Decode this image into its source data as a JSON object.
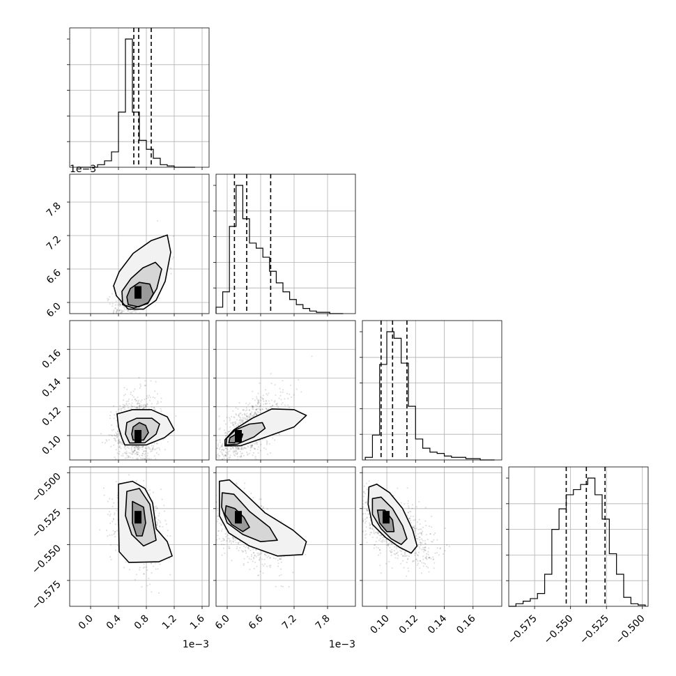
{
  "chart_data": {
    "type": "scatter",
    "subtype": "corner-plot",
    "grid": true,
    "colors": {
      "points": "#000000",
      "frame": "#000000",
      "grid": "#b0b0b0",
      "background": "#ffffff"
    },
    "parameters": [
      {
        "range": [
          -0.0003,
          0.0017
        ],
        "ticks": [
          0.0,
          0.0004,
          0.0008,
          0.0012,
          0.0016
        ],
        "tick_labels": [
          "0.0",
          "0.4",
          "0.8",
          "1.2",
          "1.6"
        ],
        "offset_label": "1e−3",
        "quantiles": [
          0.00062,
          0.00069,
          0.00087
        ]
      },
      {
        "range": [
          0.0058,
          0.0083
        ],
        "ticks": [
          0.006,
          0.0066,
          0.0072,
          0.0078
        ],
        "tick_labels": [
          "6.0",
          "6.6",
          "7.2",
          "7.8"
        ],
        "offset_label": "1e−3",
        "quantiles": [
          0.00613,
          0.00635,
          0.00678
        ]
      },
      {
        "range": [
          0.083,
          0.18
        ],
        "ticks": [
          0.1,
          0.12,
          0.14,
          0.16
        ],
        "tick_labels": [
          "0.10",
          "0.12",
          "0.14",
          "0.16"
        ],
        "offset_label": "",
        "quantiles": [
          0.096,
          0.104,
          0.114
        ]
      },
      {
        "range": [
          -0.593,
          -0.496
        ],
        "ticks": [
          -0.575,
          -0.55,
          -0.525,
          -0.5
        ],
        "tick_labels": [
          "−0.575",
          "−0.550",
          "−0.525",
          "−0.500"
        ],
        "offset_label": "",
        "quantiles": [
          -0.553,
          -0.539,
          -0.526
        ]
      }
    ],
    "histograms": [
      {
        "parameter": 0,
        "bins": [
          -0.0002,
          -0.0001,
          0.0,
          0.0001,
          0.0002,
          0.0003,
          0.0004,
          0.0005,
          0.0006,
          0.0007,
          0.0008,
          0.0009,
          0.001,
          0.0011,
          0.0012,
          0.0013,
          0.0014,
          0.0015
        ],
        "counts": [
          0,
          0,
          0,
          0.02,
          0.05,
          0.12,
          0.43,
          1.0,
          0.43,
          0.21,
          0.14,
          0.07,
          0.02,
          0.01,
          0,
          0,
          0
        ]
      },
      {
        "parameter": 1,
        "bins": [
          0.0058,
          0.00592,
          0.00604,
          0.00616,
          0.00628,
          0.0064,
          0.00652,
          0.00664,
          0.00676,
          0.00688,
          0.007,
          0.00712,
          0.00724,
          0.00736,
          0.00748,
          0.0076,
          0.00772,
          0.00784,
          0.00796,
          0.00808
        ],
        "counts": [
          0.05,
          0.17,
          0.68,
          1.0,
          0.74,
          0.55,
          0.51,
          0.44,
          0.33,
          0.24,
          0.17,
          0.11,
          0.07,
          0.04,
          0.02,
          0.01,
          0.01,
          0,
          0
        ]
      },
      {
        "parameter": 2,
        "bins": [
          0.085,
          0.09,
          0.095,
          0.1,
          0.105,
          0.11,
          0.115,
          0.12,
          0.125,
          0.13,
          0.135,
          0.14,
          0.145,
          0.15,
          0.155,
          0.16,
          0.165,
          0.17,
          0.175
        ],
        "counts": [
          0.02,
          0.19,
          0.73,
          0.98,
          0.93,
          0.74,
          0.41,
          0.16,
          0.09,
          0.06,
          0.05,
          0.03,
          0.02,
          0.02,
          0.01,
          0.01,
          0,
          0
        ]
      },
      {
        "parameter": 3,
        "bins": [
          -0.593,
          -0.588,
          -0.583,
          -0.578,
          -0.573,
          -0.568,
          -0.563,
          -0.558,
          -0.553,
          -0.548,
          -0.543,
          -0.538,
          -0.533,
          -0.528,
          -0.523,
          -0.518,
          -0.513,
          -0.508,
          -0.503,
          -0.498
        ],
        "counts": [
          0,
          0.02,
          0.04,
          0.06,
          0.1,
          0.25,
          0.6,
          0.76,
          0.87,
          0.91,
          0.95,
          1.0,
          0.87,
          0.68,
          0.41,
          0.25,
          0.07,
          0.02,
          0.01
        ]
      }
    ],
    "pairs": [
      {
        "x": 0,
        "y": 1,
        "center": [
          0.00068,
          0.00627
        ],
        "sigma": [
          0.00017,
          0.00032
        ],
        "rho": 0.6,
        "peak": [
          0.00068,
          0.00618
        ],
        "contours": [
          [
            [
              0.00054,
              0.00596
            ],
            [
              0.00069,
              0.00592
            ],
            [
              0.00083,
              0.006
            ],
            [
              0.0009,
              0.00616
            ],
            [
              0.00085,
              0.00633
            ],
            [
              0.0007,
              0.00636
            ],
            [
              0.00057,
              0.00625
            ],
            [
              0.00052,
              0.0061
            ]
          ],
          [
            [
              0.00046,
              0.00596
            ],
            [
              0.00062,
              0.0059
            ],
            [
              0.00082,
              0.00598
            ],
            [
              0.00095,
              0.00625
            ],
            [
              0.00102,
              0.0066
            ],
            [
              0.00093,
              0.00672
            ],
            [
              0.00075,
              0.00662
            ],
            [
              0.00058,
              0.00643
            ],
            [
              0.00045,
              0.0062
            ]
          ],
          [
            [
              0.00037,
              0.00612
            ],
            [
              0.00054,
              0.00588
            ],
            [
              0.00076,
              0.00588
            ],
            [
              0.00094,
              0.00604
            ],
            [
              0.00107,
              0.00638
            ],
            [
              0.00115,
              0.0069
            ],
            [
              0.0011,
              0.00721
            ],
            [
              0.00087,
              0.00711
            ],
            [
              0.00061,
              0.00688
            ],
            [
              0.00041,
              0.00655
            ],
            [
              0.00033,
              0.0063
            ]
          ]
        ]
      },
      {
        "x": 0,
        "y": 2,
        "center": [
          0.00068,
          0.103
        ],
        "sigma": [
          0.00017,
          0.013
        ],
        "rho": 0.12,
        "peak": [
          0.00068,
          0.0995
        ],
        "contours": [
          [
            [
              0.00061,
              0.0968
            ],
            [
              0.00076,
              0.0968
            ],
            [
              0.00083,
              0.102
            ],
            [
              0.00079,
              0.107
            ],
            [
              0.0007,
              0.109
            ],
            [
              0.00061,
              0.106
            ],
            [
              0.00059,
              0.101
            ]
          ],
          [
            [
              0.00056,
              0.0948
            ],
            [
              0.00078,
              0.095
            ],
            [
              0.00094,
              0.101
            ],
            [
              0.00099,
              0.108
            ],
            [
              0.00088,
              0.112
            ],
            [
              0.00066,
              0.112
            ],
            [
              0.00052,
              0.109
            ],
            [
              0.0005,
              0.101
            ]
          ],
          [
            [
              0.00049,
              0.0935
            ],
            [
              0.0008,
              0.0935
            ],
            [
              0.00106,
              0.0985
            ],
            [
              0.0012,
              0.104
            ],
            [
              0.0011,
              0.113
            ],
            [
              0.00087,
              0.118
            ],
            [
              0.0006,
              0.118
            ],
            [
              0.00038,
              0.115
            ],
            [
              0.0004,
              0.106
            ],
            [
              0.00045,
              0.098
            ]
          ]
        ]
      },
      {
        "x": 1,
        "y": 2,
        "center": [
          0.00636,
          0.103
        ],
        "sigma": [
          0.00032,
          0.013
        ],
        "rho": 0.65,
        "peak": [
          0.0062,
          0.0995
        ],
        "contours": [
          [
            [
              0.00603,
              0.095
            ],
            [
              0.00613,
              0.095
            ],
            [
              0.00626,
              0.0985
            ],
            [
              0.00628,
              0.101
            ],
            [
              0.00617,
              0.1012
            ],
            [
              0.00605,
              0.0985
            ]
          ],
          [
            [
              0.00598,
              0.0935
            ],
            [
              0.00618,
              0.094
            ],
            [
              0.00648,
              0.099
            ],
            [
              0.00668,
              0.105
            ],
            [
              0.00663,
              0.109
            ],
            [
              0.0064,
              0.108
            ],
            [
              0.00615,
              0.104
            ],
            [
              0.00599,
              0.098
            ]
          ],
          [
            [
              0.00596,
              0.0928
            ],
            [
              0.00625,
              0.093
            ],
            [
              0.0067,
              0.099
            ],
            [
              0.0072,
              0.106
            ],
            [
              0.00742,
              0.114
            ],
            [
              0.0072,
              0.118
            ],
            [
              0.0068,
              0.1185
            ],
            [
              0.00645,
              0.112
            ],
            [
              0.00612,
              0.104
            ],
            [
              0.00596,
              0.097
            ]
          ]
        ]
      },
      {
        "x": 0,
        "y": 3,
        "center": [
          0.0007,
          -0.539
        ],
        "sigma": [
          0.00017,
          0.012
        ],
        "rho": -0.25,
        "peak": [
          0.00068,
          -0.531
        ],
        "contours": [
          [
            [
              0.0006,
              -0.52
            ],
            [
              0.00076,
              -0.524
            ],
            [
              0.00079,
              -0.535
            ],
            [
              0.00074,
              -0.544
            ],
            [
              0.00066,
              -0.544
            ],
            [
              0.0006,
              -0.535
            ]
          ],
          [
            [
              0.00052,
              -0.513
            ],
            [
              0.0007,
              -0.511
            ],
            [
              0.00085,
              -0.522
            ],
            [
              0.0009,
              -0.536
            ],
            [
              0.00094,
              -0.547
            ],
            [
              0.00076,
              -0.551
            ],
            [
              0.00059,
              -0.543
            ],
            [
              0.0005,
              -0.53
            ]
          ],
          [
            [
              0.0004,
              -0.508
            ],
            [
              0.0006,
              -0.506
            ],
            [
              0.00078,
              -0.511
            ],
            [
              0.00089,
              -0.521
            ],
            [
              0.00094,
              -0.539
            ],
            [
              0.0011,
              -0.548
            ],
            [
              0.00117,
              -0.558
            ],
            [
              0.00098,
              -0.562
            ],
            [
              0.00055,
              -0.5625
            ],
            [
              0.00041,
              -0.555
            ],
            [
              0.0004,
              -0.53
            ]
          ]
        ]
      },
      {
        "x": 1,
        "y": 3,
        "center": [
          0.00636,
          -0.539
        ],
        "sigma": [
          0.00032,
          0.012
        ],
        "rho": -0.55,
        "peak": [
          0.0062,
          -0.531
        ],
        "contours": [
          [
            [
              0.00598,
              -0.523
            ],
            [
              0.00614,
              -0.525
            ],
            [
              0.0063,
              -0.531
            ],
            [
              0.0064,
              -0.538
            ],
            [
              0.00628,
              -0.541
            ],
            [
              0.00608,
              -0.536
            ],
            [
              0.00596,
              -0.529
            ]
          ],
          [
            [
              0.00591,
              -0.514
            ],
            [
              0.00612,
              -0.515
            ],
            [
              0.0064,
              -0.527
            ],
            [
              0.00676,
              -0.538
            ],
            [
              0.0069,
              -0.547
            ],
            [
              0.0066,
              -0.548
            ],
            [
              0.00628,
              -0.543
            ],
            [
              0.006,
              -0.535
            ],
            [
              0.0059,
              -0.524
            ]
          ],
          [
            [
              0.00586,
              -0.506
            ],
            [
              0.00604,
              -0.505
            ],
            [
              0.0063,
              -0.514
            ],
            [
              0.00668,
              -0.528
            ],
            [
              0.00718,
              -0.54
            ],
            [
              0.00742,
              -0.548
            ],
            [
              0.00735,
              -0.557
            ],
            [
              0.0069,
              -0.558
            ],
            [
              0.0064,
              -0.551
            ],
            [
              0.00603,
              -0.542
            ],
            [
              0.00586,
              -0.53
            ]
          ]
        ]
      },
      {
        "x": 2,
        "y": 3,
        "center": [
          0.105,
          -0.539
        ],
        "sigma": [
          0.013,
          0.012
        ],
        "rho": -0.55,
        "peak": [
          0.0995,
          -0.531
        ],
        "contours": [
          [
            [
              0.0935,
              -0.526
            ],
            [
              0.0985,
              -0.526
            ],
            [
              0.104,
              -0.533
            ],
            [
              0.105,
              -0.541
            ],
            [
              0.1,
              -0.541
            ],
            [
              0.095,
              -0.535
            ]
          ],
          [
            [
              0.09,
              -0.518
            ],
            [
              0.096,
              -0.517
            ],
            [
              0.104,
              -0.525
            ],
            [
              0.111,
              -0.537
            ],
            [
              0.114,
              -0.546
            ],
            [
              0.11,
              -0.55
            ],
            [
              0.103,
              -0.546
            ],
            [
              0.096,
              -0.539
            ],
            [
              0.09,
              -0.529
            ]
          ],
          [
            [
              0.0875,
              -0.51
            ],
            [
              0.093,
              -0.508
            ],
            [
              0.102,
              -0.514
            ],
            [
              0.111,
              -0.525
            ],
            [
              0.118,
              -0.54
            ],
            [
              0.121,
              -0.551
            ],
            [
              0.117,
              -0.556
            ],
            [
              0.109,
              -0.552
            ],
            [
              0.099,
              -0.545
            ],
            [
              0.09,
              -0.536
            ],
            [
              0.087,
              -0.522
            ]
          ]
        ]
      }
    ]
  }
}
